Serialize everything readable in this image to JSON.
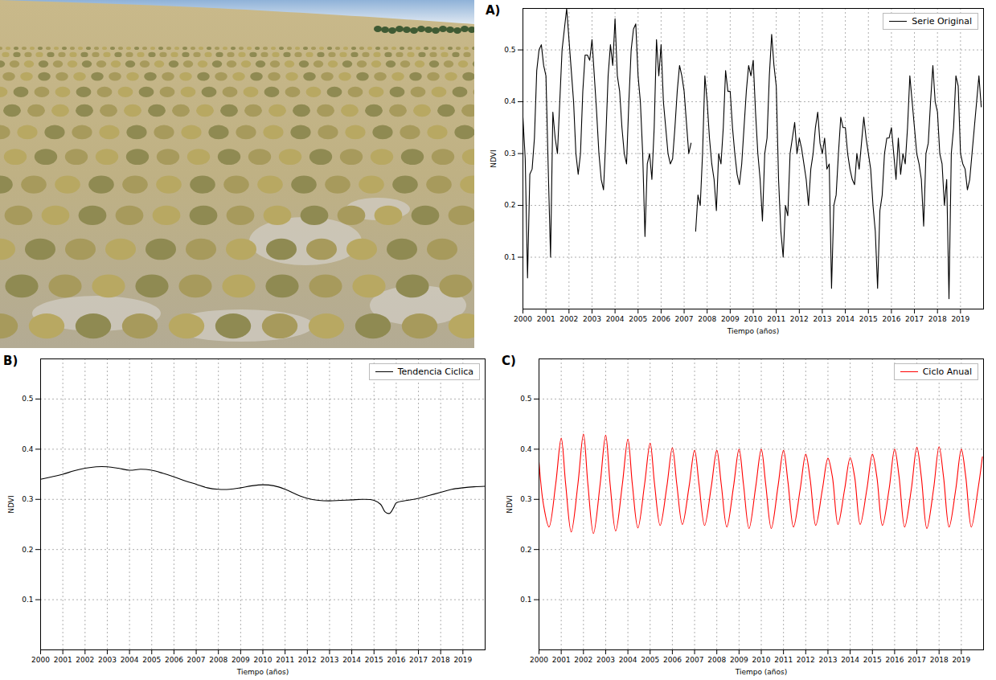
{
  "chart_data": [
    {
      "type": "line",
      "title": "A)",
      "xlabel": "Tiempo (años)",
      "ylabel": "NDVI",
      "xlim": [
        2000,
        2020
      ],
      "xticks": [
        2000,
        2001,
        2002,
        2003,
        2004,
        2005,
        2006,
        2007,
        2008,
        2009,
        2010,
        2011,
        2012,
        2013,
        2014,
        2015,
        2016,
        2017,
        2018,
        2019
      ],
      "ylim": [
        0,
        0.58
      ],
      "yticks": [
        0.1,
        0.2,
        0.3,
        0.4,
        0.5
      ],
      "grid": true,
      "legend": "upper right",
      "x": [
        2000,
        2000.1,
        2000.2,
        2000.3,
        2000.4,
        2000.5,
        2000.6,
        2000.7,
        2000.8,
        2000.9,
        2001,
        2001.1,
        2001.2,
        2001.3,
        2001.4,
        2001.5,
        2001.6,
        2001.7,
        2001.8,
        2001.9,
        2002,
        2002.1,
        2002.2,
        2002.3,
        2002.4,
        2002.5,
        2002.6,
        2002.7,
        2002.8,
        2002.9,
        2003,
        2003.1,
        2003.2,
        2003.3,
        2003.4,
        2003.5,
        2003.6,
        2003.7,
        2003.8,
        2003.9,
        2004,
        2004.1,
        2004.2,
        2004.3,
        2004.4,
        2004.5,
        2004.6,
        2004.7,
        2004.8,
        2004.9,
        2005,
        2005.1,
        2005.2,
        2005.3,
        2005.4,
        2005.5,
        2005.6,
        2005.7,
        2005.8,
        2005.9,
        2006,
        2006.1,
        2006.2,
        2006.3,
        2006.4,
        2006.5,
        2006.6,
        2006.7,
        2006.8,
        2006.9,
        2007,
        2007.1,
        2007.2,
        2007.3,
        2007.4,
        2007.5,
        2007.6,
        2007.7,
        2007.8,
        2007.9,
        2008,
        2008.1,
        2008.2,
        2008.3,
        2008.4,
        2008.5,
        2008.6,
        2008.7,
        2008.8,
        2008.9,
        2009,
        2009.1,
        2009.2,
        2009.3,
        2009.4,
        2009.5,
        2009.6,
        2009.7,
        2009.8,
        2009.9,
        2010,
        2010.1,
        2010.2,
        2010.3,
        2010.4,
        2010.5,
        2010.6,
        2010.7,
        2010.8,
        2010.9,
        2011,
        2011.1,
        2011.2,
        2011.3,
        2011.4,
        2011.5,
        2011.6,
        2011.7,
        2011.8,
        2011.9,
        2012,
        2012.1,
        2012.2,
        2012.3,
        2012.4,
        2012.5,
        2012.6,
        2012.7,
        2012.8,
        2012.9,
        2013,
        2013.1,
        2013.2,
        2013.3,
        2013.4,
        2013.5,
        2013.6,
        2013.7,
        2013.8,
        2013.9,
        2014,
        2014.1,
        2014.2,
        2014.3,
        2014.4,
        2014.5,
        2014.6,
        2014.7,
        2014.8,
        2014.9,
        2015,
        2015.1,
        2015.2,
        2015.3,
        2015.4,
        2015.5,
        2015.6,
        2015.7,
        2015.8,
        2015.9,
        2016,
        2016.1,
        2016.2,
        2016.3,
        2016.4,
        2016.5,
        2016.6,
        2016.7,
        2016.8,
        2016.9,
        2017,
        2017.1,
        2017.2,
        2017.3,
        2017.4,
        2017.5,
        2017.6,
        2017.7,
        2017.8,
        2017.9,
        2018,
        2018.1,
        2018.2,
        2018.3,
        2018.4,
        2018.5,
        2018.6,
        2018.7,
        2018.8,
        2018.9,
        2019,
        2019.1,
        2019.2,
        2019.3,
        2019.4,
        2019.5,
        2019.6,
        2019.7,
        2019.8,
        2019.9
      ],
      "series": [
        {
          "name": "Serie Original",
          "color": "#000000",
          "values": [
            0.37,
            0.29,
            0.06,
            0.26,
            0.27,
            0.33,
            0.46,
            0.5,
            0.51,
            0.47,
            0.45,
            0.27,
            0.1,
            0.38,
            0.33,
            0.3,
            0.4,
            0.5,
            0.54,
            0.58,
            0.52,
            0.46,
            0.4,
            0.3,
            0.26,
            0.3,
            0.42,
            0.49,
            0.49,
            0.48,
            0.52,
            0.45,
            0.38,
            0.3,
            0.25,
            0.23,
            0.33,
            0.45,
            0.51,
            0.47,
            0.56,
            0.45,
            0.42,
            0.35,
            0.3,
            0.28,
            0.4,
            0.5,
            0.54,
            0.55,
            0.45,
            0.4,
            0.3,
            0.14,
            0.28,
            0.3,
            0.25,
            0.35,
            0.52,
            0.45,
            0.51,
            0.4,
            0.35,
            0.3,
            0.28,
            0.29,
            0.35,
            0.42,
            0.47,
            0.45,
            0.42,
            0.36,
            0.3,
            0.32,
            null,
            0.15,
            0.22,
            0.2,
            0.3,
            0.45,
            0.4,
            0.33,
            0.28,
            0.25,
            0.19,
            0.3,
            0.28,
            0.35,
            0.46,
            0.42,
            0.42,
            0.35,
            0.3,
            0.26,
            0.24,
            0.28,
            0.35,
            0.42,
            0.47,
            0.45,
            0.48,
            0.38,
            0.3,
            0.25,
            0.17,
            0.3,
            0.33,
            0.45,
            0.53,
            0.47,
            0.43,
            0.25,
            0.15,
            0.1,
            0.2,
            0.18,
            0.3,
            0.33,
            0.36,
            0.3,
            0.33,
            0.31,
            0.28,
            0.25,
            0.2,
            0.27,
            0.3,
            0.35,
            0.38,
            0.32,
            0.3,
            0.33,
            0.27,
            0.28,
            0.04,
            0.2,
            0.22,
            0.3,
            0.37,
            0.35,
            0.35,
            0.3,
            0.27,
            0.25,
            0.24,
            0.3,
            0.27,
            0.32,
            0.37,
            0.33,
            0.3,
            0.27,
            0.2,
            0.15,
            0.04,
            0.19,
            0.22,
            0.3,
            0.33,
            0.33,
            0.35,
            0.3,
            0.25,
            0.33,
            0.26,
            0.3,
            0.28,
            0.35,
            0.45,
            0.4,
            0.35,
            0.3,
            0.28,
            0.25,
            0.16,
            0.3,
            0.32,
            0.4,
            0.47,
            0.4,
            0.38,
            0.3,
            0.28,
            0.2,
            0.25,
            0.02,
            0.3,
            0.35,
            0.45,
            0.43,
            0.3,
            0.28,
            0.27,
            0.23,
            0.25,
            0.3,
            0.35,
            0.4,
            0.45,
            0.39
          ]
        }
      ]
    },
    {
      "type": "line",
      "title": "B)",
      "xlabel": "Tiempo (años)",
      "ylabel": "NDVI",
      "xlim": [
        2000,
        2020
      ],
      "xticks": [
        2000,
        2001,
        2002,
        2003,
        2004,
        2005,
        2006,
        2007,
        2008,
        2009,
        2010,
        2011,
        2012,
        2013,
        2014,
        2015,
        2016,
        2017,
        2018,
        2019
      ],
      "ylim": [
        0,
        0.58
      ],
      "yticks": [
        0.1,
        0.2,
        0.3,
        0.4,
        0.5
      ],
      "grid": true,
      "legend": "upper right",
      "x": [
        2000,
        2000.5,
        2001,
        2001.5,
        2002,
        2002.5,
        2003,
        2003.5,
        2004,
        2004.5,
        2005,
        2005.5,
        2006,
        2006.5,
        2007,
        2007.5,
        2008,
        2008.5,
        2009,
        2009.5,
        2010,
        2010.5,
        2011,
        2011.5,
        2012,
        2012.5,
        2013,
        2013.5,
        2014,
        2014.5,
        2015,
        2015.3,
        2015.5,
        2015.7,
        2015.9,
        2016,
        2016.5,
        2017,
        2017.5,
        2018,
        2018.5,
        2019,
        2019.5,
        2020
      ],
      "series": [
        {
          "name": "Tendencia Ciclica",
          "color": "#000000",
          "values": [
            0.34,
            0.345,
            0.35,
            0.357,
            0.362,
            0.365,
            0.365,
            0.362,
            0.358,
            0.36,
            0.358,
            0.352,
            0.345,
            0.337,
            0.33,
            0.323,
            0.32,
            0.32,
            0.323,
            0.327,
            0.329,
            0.327,
            0.32,
            0.31,
            0.302,
            0.298,
            0.297,
            0.298,
            0.299,
            0.3,
            0.298,
            0.29,
            0.275,
            0.272,
            0.285,
            0.293,
            0.298,
            0.302,
            0.308,
            0.314,
            0.32,
            0.323,
            0.325,
            0.326
          ]
        }
      ]
    },
    {
      "type": "line",
      "title": "C)",
      "xlabel": "Tiempo (años)",
      "ylabel": "NDVI",
      "xlim": [
        2000,
        2020
      ],
      "xticks": [
        2000,
        2001,
        2002,
        2003,
        2004,
        2005,
        2006,
        2007,
        2008,
        2009,
        2010,
        2011,
        2012,
        2013,
        2014,
        2015,
        2016,
        2017,
        2018,
        2019
      ],
      "ylim": [
        0,
        0.58
      ],
      "yticks": [
        0.1,
        0.2,
        0.3,
        0.4,
        0.5
      ],
      "grid": true,
      "legend": "upper right",
      "x": [
        2000,
        2000.2,
        2000.45,
        2000.75,
        2001,
        2001.2,
        2001.45,
        2001.75,
        2002,
        2002.2,
        2002.45,
        2002.75,
        2003,
        2003.2,
        2003.45,
        2003.75,
        2004,
        2004.2,
        2004.45,
        2004.75,
        2005,
        2005.2,
        2005.45,
        2005.75,
        2006,
        2006.2,
        2006.45,
        2006.75,
        2007,
        2007.2,
        2007.45,
        2007.75,
        2008,
        2008.2,
        2008.45,
        2008.75,
        2009,
        2009.2,
        2009.45,
        2009.75,
        2010,
        2010.2,
        2010.45,
        2010.75,
        2011,
        2011.2,
        2011.45,
        2011.75,
        2012,
        2012.2,
        2012.45,
        2012.75,
        2013,
        2013.2,
        2013.45,
        2013.75,
        2014,
        2014.2,
        2014.45,
        2014.75,
        2015,
        2015.2,
        2015.45,
        2015.75,
        2016,
        2016.2,
        2016.45,
        2016.75,
        2017,
        2017.2,
        2017.45,
        2017.75,
        2018,
        2018.2,
        2018.45,
        2018.75,
        2019,
        2019.2,
        2019.45,
        2019.75,
        2019.95
      ],
      "series": [
        {
          "name": "Ciclo Anual",
          "color": "#ff0000",
          "values": [
            0.375,
            0.29,
            0.245,
            0.33,
            0.422,
            0.33,
            0.235,
            0.33,
            0.43,
            0.33,
            0.232,
            0.33,
            0.428,
            0.33,
            0.237,
            0.33,
            0.42,
            0.33,
            0.243,
            0.33,
            0.412,
            0.33,
            0.248,
            0.325,
            0.403,
            0.33,
            0.25,
            0.325,
            0.398,
            0.33,
            0.248,
            0.325,
            0.398,
            0.33,
            0.245,
            0.325,
            0.4,
            0.33,
            0.242,
            0.325,
            0.4,
            0.33,
            0.242,
            0.325,
            0.398,
            0.335,
            0.245,
            0.32,
            0.39,
            0.34,
            0.248,
            0.32,
            0.382,
            0.345,
            0.25,
            0.32,
            0.383,
            0.345,
            0.25,
            0.32,
            0.39,
            0.345,
            0.248,
            0.32,
            0.4,
            0.345,
            0.245,
            0.32,
            0.404,
            0.345,
            0.242,
            0.32,
            0.405,
            0.345,
            0.245,
            0.32,
            0.4,
            0.345,
            0.245,
            0.32,
            0.385
          ]
        }
      ]
    }
  ]
}
